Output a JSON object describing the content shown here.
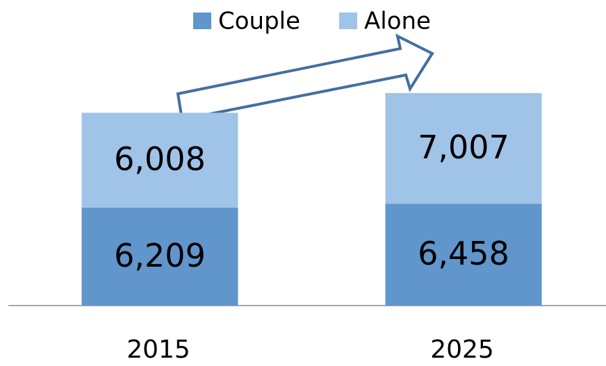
{
  "chart_data": {
    "type": "bar",
    "stacked": true,
    "categories": [
      "2015",
      "2025"
    ],
    "series": [
      {
        "name": "Couple",
        "color": "#6096cb",
        "values": [
          6209,
          6458
        ],
        "value_labels": [
          "6,209",
          "6,458"
        ]
      },
      {
        "name": "Alone",
        "color": "#a0c3e8",
        "values": [
          6008,
          7007
        ],
        "value_labels": [
          "6,008",
          "7,007"
        ]
      }
    ]
  }
}
